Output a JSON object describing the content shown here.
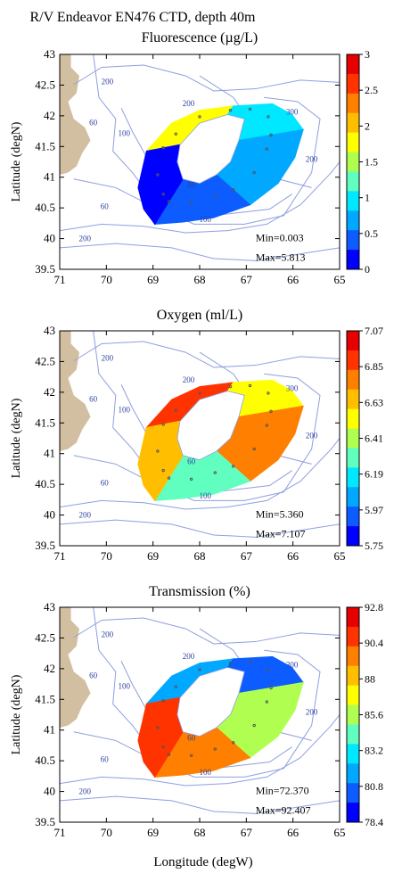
{
  "figure": {
    "title_line1": "R/V Endeavor EN476 CTD, depth 40m",
    "xlabel": "Longitude (degW)",
    "ylabel": "Latitude (degN)"
  },
  "chart_data": [
    {
      "type": "heatmap",
      "title": "Fluorescence (µg/L)",
      "xlim": [
        71,
        65
      ],
      "ylim": [
        39.5,
        43
      ],
      "x_ticks": [
        "71",
        "70",
        "69",
        "68",
        "67",
        "66",
        "65"
      ],
      "y_ticks": [
        "43",
        "42.5",
        "42",
        "41.5",
        "41",
        "40.5",
        "40",
        "39.5"
      ],
      "colorbar": {
        "min": 0,
        "max": 3,
        "ticks": [
          "3",
          "2.5",
          "2",
          "1.5",
          "1",
          "0.5",
          "0"
        ]
      },
      "stats": {
        "min": "Min=0.003",
        "max": "Max=5.813"
      },
      "scheme": "flu",
      "contour_labels": [
        "200",
        "60",
        "100",
        "200",
        "300",
        "60",
        "200",
        "60",
        "100",
        "200"
      ]
    },
    {
      "type": "heatmap",
      "title": "Oxygen (ml/L)",
      "xlim": [
        71,
        65
      ],
      "ylim": [
        39.5,
        43
      ],
      "x_ticks": [
        "71",
        "70",
        "69",
        "68",
        "67",
        "66",
        "65"
      ],
      "y_ticks": [
        "43",
        "42.5",
        "42",
        "41.5",
        "41",
        "40.5",
        "40",
        "39.5"
      ],
      "colorbar": {
        "min": 5.75,
        "max": 7.07,
        "ticks": [
          "7.07",
          "6.85",
          "6.63",
          "6.41",
          "6.19",
          "5.97",
          "5.75"
        ]
      },
      "stats": {
        "min": "Min=5.360",
        "max": "Max=7.107"
      },
      "scheme": "oxy",
      "contour_labels": [
        "200",
        "60",
        "100",
        "200",
        "300",
        "60",
        "200",
        "60",
        "100",
        "200"
      ]
    },
    {
      "type": "heatmap",
      "title": "Transmission (%)",
      "xlim": [
        71,
        65
      ],
      "ylim": [
        39.5,
        43
      ],
      "x_ticks": [
        "71",
        "70",
        "69",
        "68",
        "67",
        "66",
        "65"
      ],
      "y_ticks": [
        "43",
        "42.5",
        "42",
        "41.5",
        "41",
        "40.5",
        "40",
        "39.5"
      ],
      "colorbar": {
        "min": 78.4,
        "max": 92.8,
        "ticks": [
          "92.8",
          "90.4",
          "88",
          "85.6",
          "83.2",
          "80.8",
          "78.4"
        ]
      },
      "stats": {
        "min": "Min=72.370",
        "max": "Max=92.407"
      },
      "scheme": "trn",
      "contour_labels": [
        "200",
        "60",
        "100",
        "200",
        "300",
        "60",
        "200",
        "60",
        "100",
        "200"
      ]
    }
  ],
  "colors": {
    "land": "#d2bea0",
    "contour": "#8f9fe0",
    "contour_label": "#2f3fa0",
    "colorscale": [
      "#0000ff",
      "#0c5cff",
      "#00a8ff",
      "#00e8ff",
      "#60ffc0",
      "#b0ff50",
      "#ffff00",
      "#ffbf00",
      "#ff7f00",
      "#ff3300",
      "#e60000"
    ]
  }
}
